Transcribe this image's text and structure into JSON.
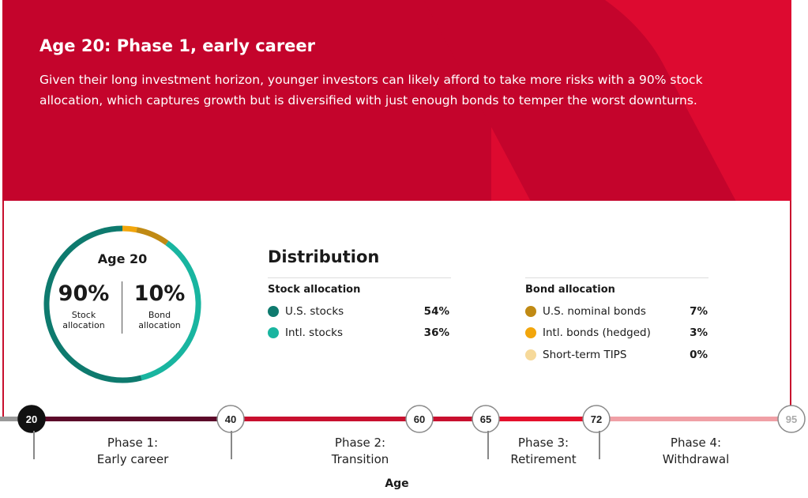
{
  "header": {
    "title": "Age 20: Phase 1, early career",
    "description": "Given their long investment horizon, younger investors can likely afford to take more risks with a 90% stock allocation, which captures growth but is diversified with just enough bonds to temper the worst downturns."
  },
  "colors": {
    "banner": "#c4042c",
    "us_stocks": "#0e7a6e",
    "intl_stocks": "#19b5a0",
    "us_nominal_bonds": "#c08a14",
    "intl_bonds": "#f2a60c",
    "short_term_tips": "#f6d99a"
  },
  "chart_data": [
    {
      "type": "pie",
      "title": "Age 20",
      "labels": [
        "U.S. stocks",
        "Intl. stocks",
        "U.S. nominal bonds",
        "Intl. bonds (hedged)",
        "Short-term TIPS"
      ],
      "values": [
        54,
        36,
        7,
        3,
        0
      ],
      "summary": {
        "stock_pct": "90%",
        "stock_label_1": "Stock",
        "stock_label_2": "allocation",
        "bond_pct": "10%",
        "bond_label_1": "Bond",
        "bond_label_2": "allocation"
      }
    },
    {
      "type": "table",
      "title": "Distribution",
      "stock": {
        "heading": "Stock allocation",
        "rows": [
          {
            "label": "U.S. stocks",
            "value": "54%",
            "color": "#0e7a6e"
          },
          {
            "label": "Intl. stocks",
            "value": "36%",
            "color": "#19b5a0"
          }
        ]
      },
      "bond": {
        "heading": "Bond allocation",
        "rows": [
          {
            "label": "U.S. nominal bonds",
            "value": "7%",
            "color": "#c08a14"
          },
          {
            "label": "Intl. bonds (hedged)",
            "value": "3%",
            "color": "#f2a60c"
          },
          {
            "label": "Short-term TIPS",
            "value": "0%",
            "color": "#f6d99a"
          }
        ]
      }
    },
    {
      "type": "line",
      "xlabel": "Age",
      "milestones": [
        "20",
        "40",
        "60",
        "65",
        "72",
        "95"
      ],
      "milestone_values": [
        20,
        40,
        60,
        65,
        72,
        95
      ],
      "current": 20,
      "phases": [
        {
          "line1": "Phase 1:",
          "line2": "Early career"
        },
        {
          "line1": "Phase 2:",
          "line2": "Transition"
        },
        {
          "line1": "Phase 3:",
          "line2": "Retirement"
        },
        {
          "line1": "Phase 4:",
          "line2": "Withdrawal"
        }
      ]
    }
  ]
}
